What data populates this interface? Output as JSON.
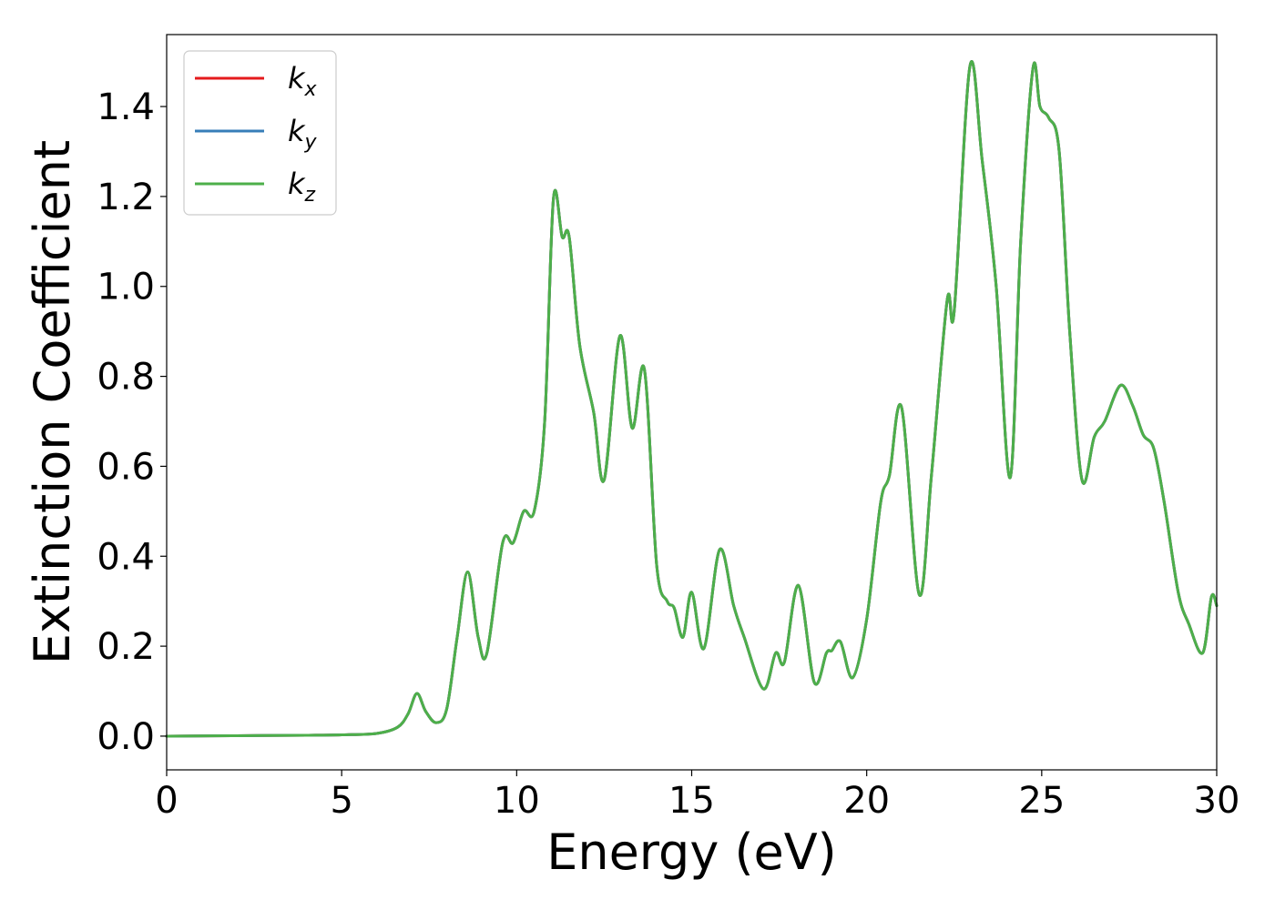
{
  "chart_data": {
    "type": "line",
    "title": "",
    "xlabel": "Energy (eV)",
    "ylabel": "Extinction Coefficient",
    "xlim": [
      0,
      30
    ],
    "ylim": [
      -0.075,
      1.56
    ],
    "xticks": [
      "0",
      "5",
      "10",
      "15",
      "20",
      "25",
      "30"
    ],
    "yticks": [
      "0.0",
      "0.2",
      "0.4",
      "0.6",
      "0.8",
      "1.0",
      "1.2",
      "1.4"
    ],
    "grid": false,
    "legend_position": "upper-left",
    "series": [
      {
        "name": "k",
        "sub": "x",
        "color": "#e41a1c"
      },
      {
        "name": "k",
        "sub": "y",
        "color": "#377eb8"
      },
      {
        "name": "k",
        "sub": "z",
        "color": "#4daf4a"
      }
    ],
    "x": [
      0,
      2,
      4,
      5,
      6,
      6.6,
      6.9,
      7.15,
      7.4,
      7.7,
      8.0,
      8.3,
      8.6,
      8.9,
      9.15,
      9.6,
      9.9,
      10.2,
      10.5,
      10.8,
      11.05,
      11.3,
      11.5,
      11.8,
      12.2,
      12.5,
      12.95,
      13.3,
      13.65,
      14.0,
      14.3,
      14.5,
      14.75,
      15.0,
      15.35,
      15.8,
      16.2,
      16.5,
      17.05,
      17.4,
      17.65,
      18.05,
      18.5,
      18.85,
      19.0,
      19.25,
      19.6,
      20.0,
      20.4,
      20.65,
      21.0,
      21.5,
      21.85,
      22.3,
      22.5,
      22.95,
      23.3,
      23.7,
      24.1,
      24.4,
      24.75,
      24.95,
      25.2,
      25.5,
      25.8,
      26.15,
      26.5,
      26.8,
      27.25,
      27.6,
      27.9,
      28.2,
      28.5,
      28.9,
      29.2,
      29.6,
      29.85,
      30
    ],
    "values": [
      0.0,
      0.001,
      0.002,
      0.003,
      0.006,
      0.02,
      0.05,
      0.095,
      0.055,
      0.03,
      0.06,
      0.22,
      0.365,
      0.22,
      0.185,
      0.43,
      0.43,
      0.5,
      0.5,
      0.7,
      1.195,
      1.11,
      1.11,
      0.87,
      0.72,
      0.57,
      0.89,
      0.685,
      0.815,
      0.38,
      0.3,
      0.285,
      0.22,
      0.32,
      0.195,
      0.415,
      0.29,
      0.22,
      0.105,
      0.185,
      0.165,
      0.335,
      0.12,
      0.185,
      0.19,
      0.21,
      0.13,
      0.26,
      0.52,
      0.58,
      0.73,
      0.315,
      0.58,
      0.97,
      0.945,
      1.49,
      1.28,
      1.0,
      0.575,
      1.1,
      1.485,
      1.4,
      1.375,
      1.3,
      0.9,
      0.57,
      0.665,
      0.7,
      0.78,
      0.735,
      0.67,
      0.64,
      0.52,
      0.32,
      0.25,
      0.185,
      0.31,
      0.29
    ]
  }
}
